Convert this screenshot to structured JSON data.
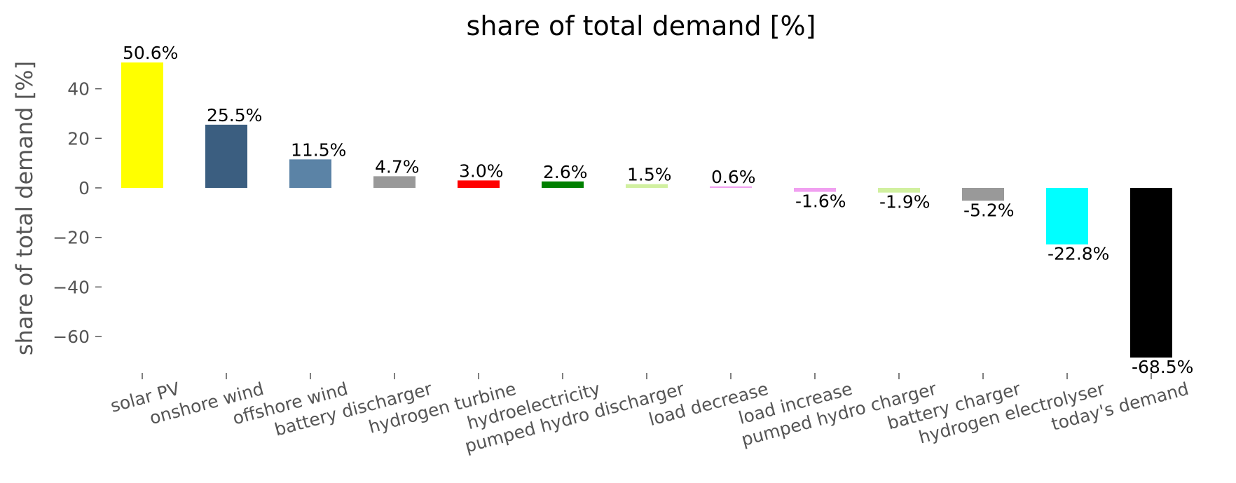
{
  "chart_data": {
    "type": "bar",
    "title": "share of total demand [%]",
    "ylabel": "share of total demand [%]",
    "xlabel": "",
    "ylim": [
      -75,
      53
    ],
    "yticks": [
      -60,
      -40,
      -20,
      0,
      20,
      40
    ],
    "ytick_labels": [
      "−60",
      "−40",
      "−20",
      "0",
      "20",
      "40"
    ],
    "grid": false,
    "categories": [
      "solar PV",
      "onshore wind",
      "offshore wind",
      "battery discharger",
      "hydrogen turbine",
      "hydroelectricity",
      "pumped hydro discharger",
      "load decrease",
      "load increase",
      "pumped hydro charger",
      "battery charger",
      "hydrogen electrolyser",
      "today's demand"
    ],
    "values": [
      50.6,
      25.5,
      11.5,
      4.7,
      3.0,
      2.6,
      1.5,
      0.6,
      -1.6,
      -1.9,
      -5.2,
      -22.8,
      -68.5
    ],
    "labels": [
      "50.6%",
      "25.5%",
      "11.5%",
      "4.7%",
      "3.0%",
      "2.6%",
      "1.5%",
      "0.6%",
      "-1.6%",
      "-1.9%",
      "-5.2%",
      "-22.8%",
      "-68.5%"
    ],
    "colors": [
      "#ffff00",
      "#3b5e80",
      "#5b83a6",
      "#999999",
      "#ff0000",
      "#008000",
      "#d1f0a0",
      "#f0a0f0",
      "#f0a0f0",
      "#d1f0a0",
      "#999999",
      "#00ffff",
      "#000000"
    ]
  }
}
